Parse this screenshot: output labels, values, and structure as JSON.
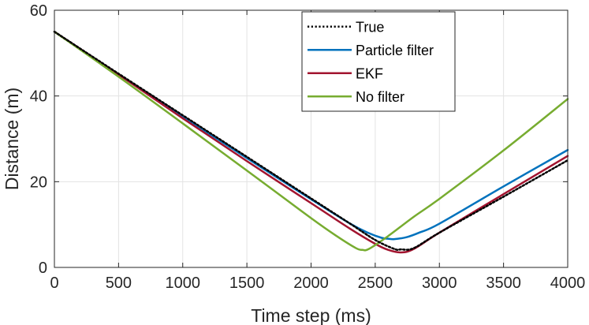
{
  "chart_data": {
    "type": "line",
    "title": "",
    "xlabel": "Time step (ms)",
    "ylabel": "Distance (m)",
    "xlim": [
      0,
      4000
    ],
    "ylim": [
      0,
      60
    ],
    "xticks": [
      0,
      500,
      1000,
      1500,
      2000,
      2500,
      3000,
      3500,
      4000
    ],
    "yticks": [
      0,
      20,
      40,
      60
    ],
    "grid": true,
    "legend_position": "top-right",
    "series": [
      {
        "name": "True",
        "color": "#000000",
        "style": "dotted",
        "x": [
          0,
          500,
          1000,
          1500,
          2000,
          2300,
          2500,
          2650,
          2700,
          2800,
          3000,
          3500,
          4000
        ],
        "y": [
          55,
          45.2,
          35.5,
          25.8,
          16.1,
          10.3,
          6.4,
          4.3,
          4.2,
          4.5,
          8.1,
          16.5,
          25
        ]
      },
      {
        "name": "Particle filter",
        "color": "#0072BD",
        "style": "solid",
        "x": [
          0,
          500,
          1000,
          1500,
          2000,
          2300,
          2450,
          2550,
          2600,
          2650,
          2750,
          2850,
          3000,
          3500,
          4000
        ],
        "y": [
          55,
          45,
          35.2,
          25.5,
          15.9,
          10.3,
          8.0,
          6.9,
          6.7,
          6.6,
          7.1,
          8.2,
          10.2,
          18.9,
          27.4
        ]
      },
      {
        "name": "EKF",
        "color": "#A2142F",
        "style": "solid",
        "x": [
          0,
          500,
          1000,
          1500,
          2000,
          2300,
          2500,
          2600,
          2700,
          2800,
          3000,
          3500,
          4000
        ],
        "y": [
          55,
          45,
          34.8,
          24.8,
          15.0,
          9.1,
          5.5,
          4.1,
          3.5,
          4.3,
          8.1,
          17.1,
          26
        ]
      },
      {
        "name": "No filter",
        "color": "#77AC30",
        "style": "solid",
        "x": [
          0,
          500,
          1000,
          1500,
          2000,
          2200,
          2350,
          2400,
          2450,
          2600,
          2800,
          3000,
          3500,
          4000
        ],
        "y": [
          55,
          44.5,
          33.6,
          22.6,
          11.5,
          7.3,
          4.5,
          4.1,
          4.3,
          7.3,
          11.8,
          16.0,
          27.3,
          39.3
        ]
      }
    ]
  }
}
